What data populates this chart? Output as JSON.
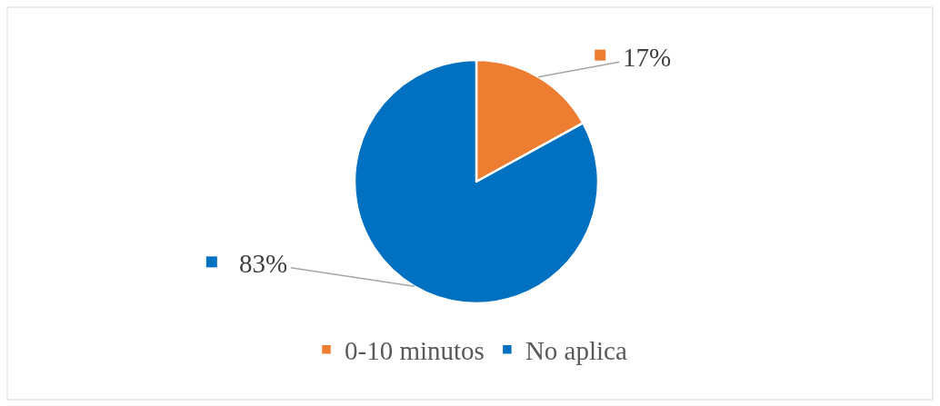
{
  "chart_data": {
    "type": "pie",
    "categories": [
      "0-10 minutos",
      "No aplica"
    ],
    "values": [
      17,
      83
    ],
    "colors": [
      "#ed7d31",
      "#0070c0"
    ],
    "value_labels": [
      "17%",
      "83%"
    ],
    "legend": "bottom"
  }
}
